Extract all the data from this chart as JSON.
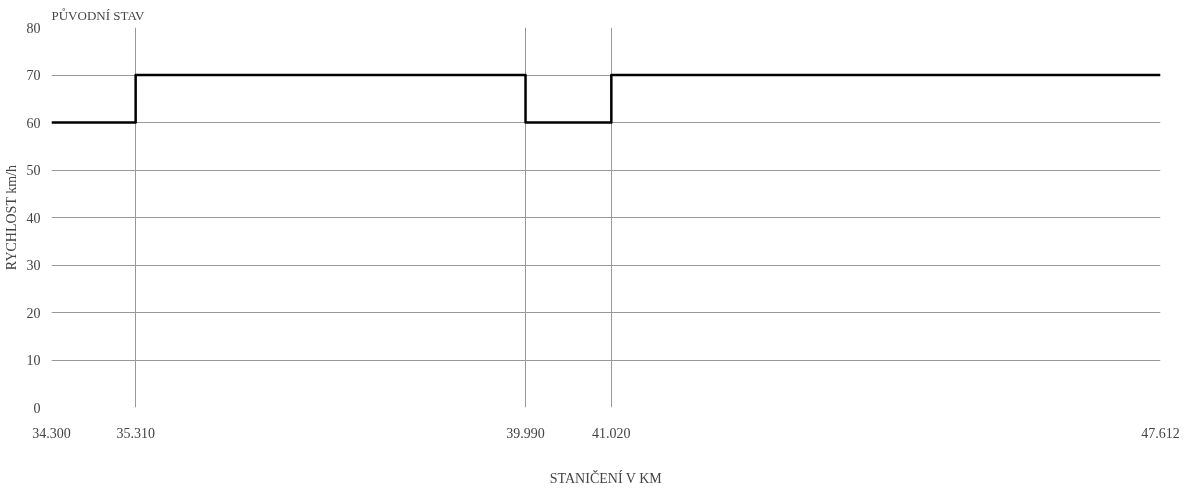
{
  "chart_data": {
    "type": "step",
    "title": "PŮVODNÍ STAV",
    "xlabel": "STANIČENÍ V KM",
    "ylabel": "RYCHLOST km/h",
    "x": [
      34.3,
      35.31,
      39.99,
      41.02,
      47.612
    ],
    "series": [
      {
        "color": "#000000",
        "values": [
          60,
          70,
          60,
          70,
          70
        ]
      }
    ],
    "xlim": [
      34.3,
      47.612
    ],
    "xticks": [
      {
        "value": 34.3,
        "label": "34.300"
      },
      {
        "value": 35.31,
        "label": "35.310"
      },
      {
        "value": 39.99,
        "label": "39.990"
      },
      {
        "value": 41.02,
        "label": "41.020"
      },
      {
        "value": 47.612,
        "label": "47.612"
      }
    ],
    "ylim": [
      0,
      80
    ],
    "yticks": [
      0,
      10,
      20,
      30,
      40,
      50,
      60,
      70,
      80
    ],
    "grid": true,
    "marker": "none",
    "line_style": "solid"
  }
}
